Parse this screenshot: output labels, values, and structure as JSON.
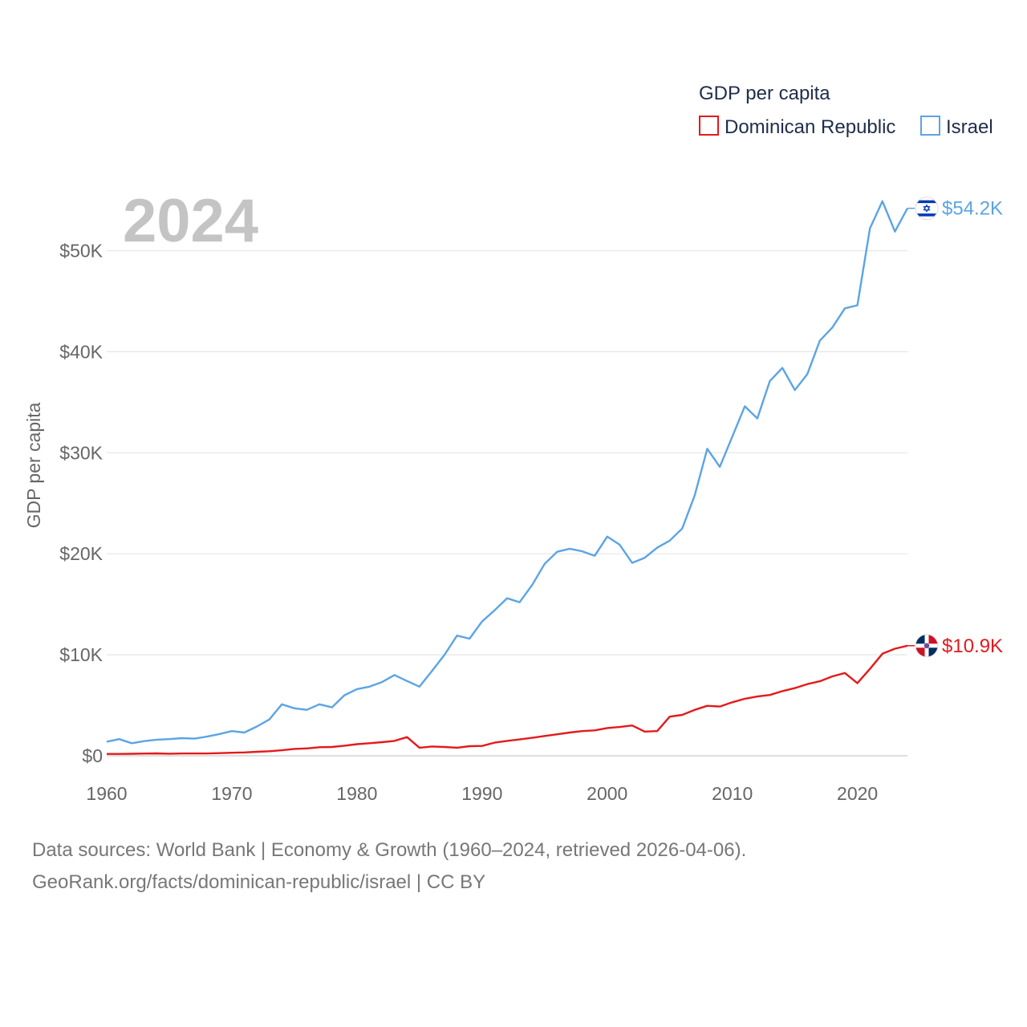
{
  "legend": {
    "title": "GDP per capita",
    "items": [
      {
        "name": "Dominican Republic",
        "color": "#e31a1c"
      },
      {
        "name": "Israel",
        "color": "#5ba4e5"
      }
    ]
  },
  "year_label": "2024",
  "footer": {
    "line1": "Data sources: World Bank | Economy & Growth (1960–2024, retrieved 2026-04-06).",
    "line2": "GeoRank.org/facts/dominican-republic/israel | CC BY"
  },
  "chart_data": {
    "type": "line",
    "title": "GDP per capita",
    "xlabel": "",
    "ylabel": "GDP per capita",
    "xlim": [
      1960,
      2024
    ],
    "ylim": [
      0,
      55000
    ],
    "x_ticks": [
      1960,
      1970,
      1980,
      1990,
      2000,
      2010,
      2020
    ],
    "y_ticks": [
      0,
      10000,
      20000,
      30000,
      40000,
      50000
    ],
    "y_tick_labels": [
      "$0",
      "$10K",
      "$20K",
      "$30K",
      "$40K",
      "$50K"
    ],
    "grid": true,
    "legend_position": "top-right",
    "x": [
      1960,
      1961,
      1962,
      1963,
      1964,
      1965,
      1966,
      1967,
      1968,
      1969,
      1970,
      1971,
      1972,
      1973,
      1974,
      1975,
      1976,
      1977,
      1978,
      1979,
      1980,
      1981,
      1982,
      1983,
      1984,
      1985,
      1986,
      1987,
      1988,
      1989,
      1990,
      1991,
      1992,
      1993,
      1994,
      1995,
      1996,
      1997,
      1998,
      1999,
      2000,
      2001,
      2002,
      2003,
      2004,
      2005,
      2006,
      2007,
      2008,
      2009,
      2010,
      2011,
      2012,
      2013,
      2014,
      2015,
      2016,
      2017,
      2018,
      2019,
      2020,
      2021,
      2022,
      2023,
      2024
    ],
    "series": [
      {
        "name": "Israel",
        "color": "#5ba4e5",
        "end_label": "$54.2K",
        "flag": "israel",
        "values": [
          1400,
          1650,
          1250,
          1450,
          1600,
          1650,
          1750,
          1700,
          1900,
          2150,
          2450,
          2300,
          2900,
          3600,
          5100,
          4700,
          4550,
          5100,
          4800,
          6000,
          6600,
          6850,
          7300,
          8000,
          7400,
          6850,
          8400,
          10000,
          11900,
          11600,
          13300,
          14400,
          15600,
          15200,
          16900,
          19000,
          20200,
          20500,
          20250,
          19800,
          21700,
          20900,
          19100,
          19600,
          20600,
          21300,
          22500,
          25800,
          30400,
          28600,
          31600,
          34600,
          33400,
          37100,
          38400,
          36200,
          37800,
          41100,
          42400,
          44300,
          44600,
          52200,
          54900,
          51900,
          54200
        ]
      },
      {
        "name": "Dominican Republic",
        "color": "#e31a1c",
        "end_label": "$10.9K",
        "flag": "dominican-republic",
        "values": [
          180,
          180,
          200,
          220,
          240,
          210,
          230,
          230,
          230,
          260,
          300,
          330,
          400,
          450,
          550,
          680,
          730,
          850,
          870,
          1000,
          1150,
          1250,
          1350,
          1480,
          1850,
          800,
          920,
          870,
          800,
          950,
          980,
          1300,
          1480,
          1620,
          1780,
          1960,
          2130,
          2300,
          2450,
          2520,
          2750,
          2850,
          3000,
          2400,
          2450,
          3880,
          4050,
          4550,
          4950,
          4880,
          5300,
          5650,
          5870,
          6020,
          6400,
          6700,
          7100,
          7380,
          7860,
          8200,
          7200,
          8600,
          10100,
          10600,
          10900
        ]
      }
    ]
  }
}
